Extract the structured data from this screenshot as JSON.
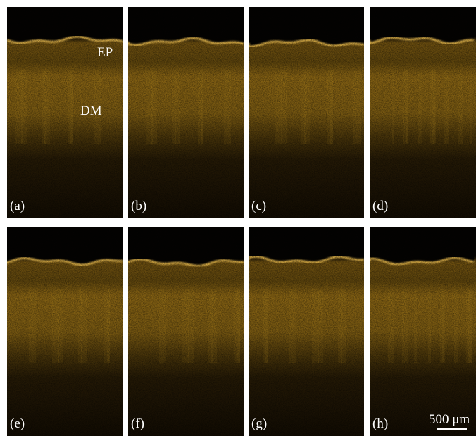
{
  "panels": [
    {
      "label": "(a)"
    },
    {
      "label": "(b)"
    },
    {
      "label": "(c)"
    },
    {
      "label": "(d)"
    },
    {
      "label": "(e)"
    },
    {
      "label": "(f)"
    },
    {
      "label": "(g)"
    },
    {
      "label": "(h)"
    }
  ],
  "annotations": [
    {
      "text": "EP"
    },
    {
      "text": "DM"
    }
  ],
  "scale_bar": {
    "label": "500 μm"
  }
}
